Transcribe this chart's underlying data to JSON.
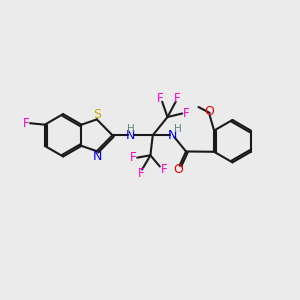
{
  "bg_color": "#ebebeb",
  "bond_color": "#1a1a1a",
  "colors": {
    "F": "#ff00cc",
    "S": "#ccaa00",
    "N": "#0000ee",
    "O": "#ee0000",
    "NH": "#558888",
    "C": "#1a1a1a"
  },
  "lw": 1.5,
  "fs": 8.5
}
